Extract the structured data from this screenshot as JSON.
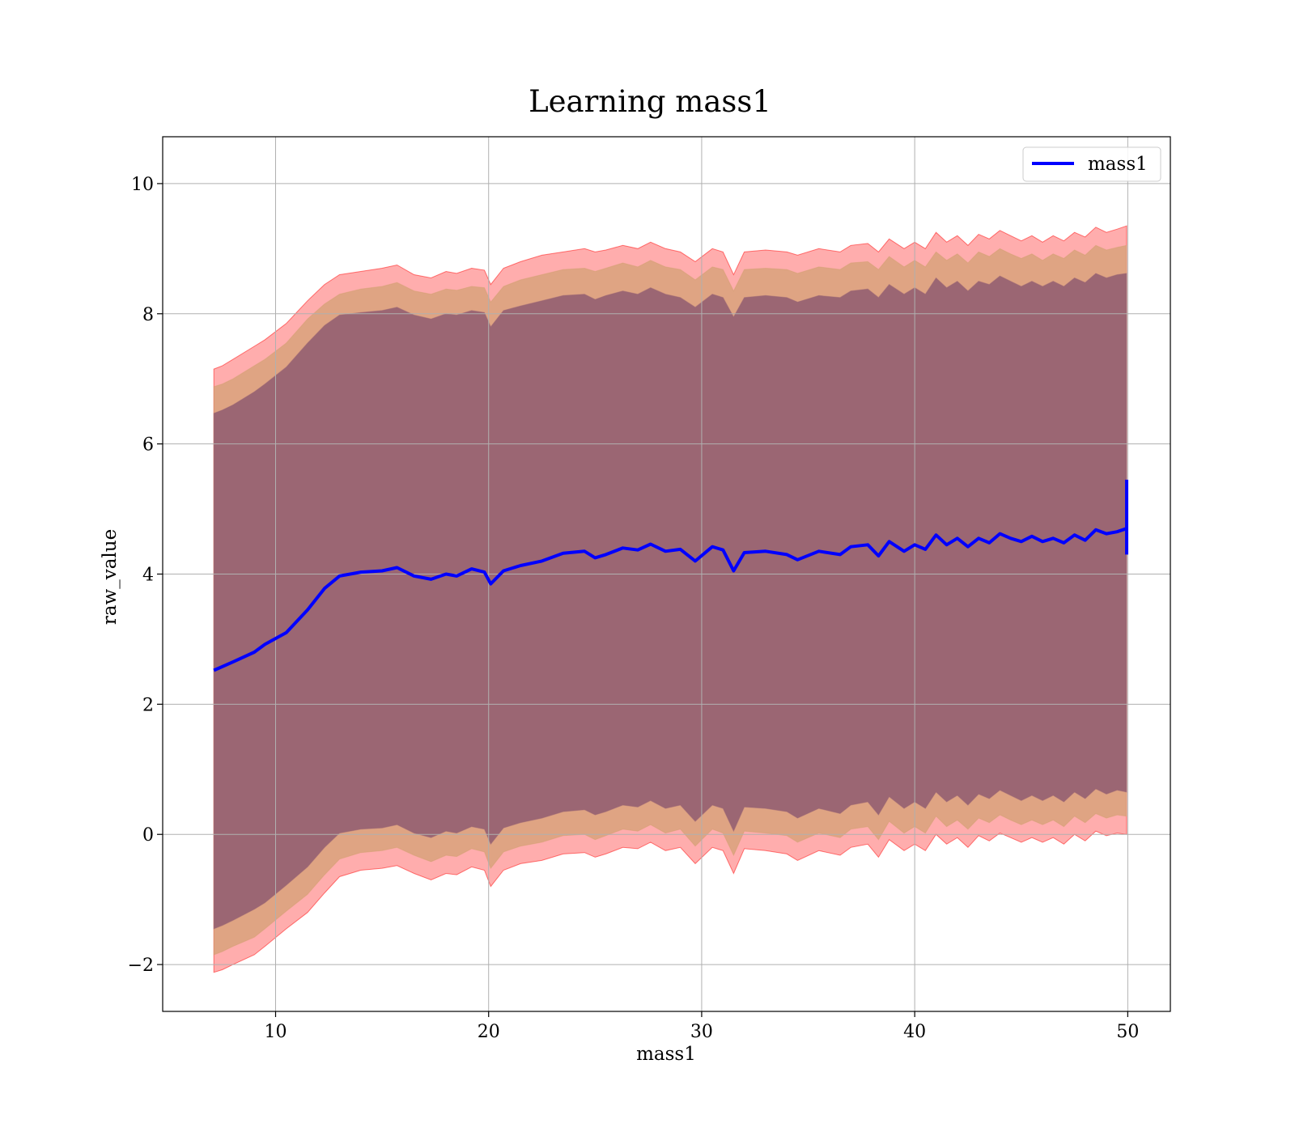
{
  "chart_data": {
    "type": "line",
    "title": "Learning mass1",
    "xlabel": "mass1",
    "ylabel": "raw_value",
    "xlim": [
      4.7,
      52.0
    ],
    "ylim": [
      -2.72,
      10.72
    ],
    "xticks": [
      10,
      20,
      30,
      40,
      50
    ],
    "yticks": [
      -2,
      0,
      2,
      4,
      6,
      8,
      10
    ],
    "xtick_labels": [
      "10",
      "20",
      "30",
      "40",
      "50"
    ],
    "ytick_labels": [
      "−2",
      "0",
      "2",
      "4",
      "6",
      "8",
      "10"
    ],
    "grid": true,
    "legend_position": "top-right",
    "series": [
      {
        "name": "mass1",
        "color": "#0000ff",
        "x": [
          7.1,
          8,
          9,
          9.5,
          10.5,
          11.5,
          12.3,
          13,
          14,
          15,
          15.7,
          16.5,
          17.3,
          18,
          18.5,
          19.2,
          19.8,
          20.1,
          20.7,
          21.5,
          22.5,
          23.5,
          24.5,
          25,
          25.5,
          26.3,
          27,
          27.6,
          28.3,
          29,
          29.7,
          30.5,
          31,
          31.5,
          32,
          33,
          34,
          34.5,
          35.5,
          36.5,
          37,
          37.8,
          38.3,
          38.8,
          39.5,
          40,
          40.5,
          41,
          41.5,
          42,
          42.5,
          43,
          43.5,
          44,
          44.5,
          45,
          45.5,
          46,
          46.5,
          47,
          47.5,
          48,
          48.5,
          49,
          49.5,
          49.95
        ],
        "y": [
          2.52,
          2.65,
          2.8,
          2.92,
          3.1,
          3.45,
          3.78,
          3.97,
          4.03,
          4.05,
          4.1,
          3.97,
          3.92,
          4.0,
          3.97,
          4.08,
          4.03,
          3.85,
          4.05,
          4.13,
          4.2,
          4.32,
          4.35,
          4.25,
          4.3,
          4.4,
          4.37,
          4.46,
          4.35,
          4.38,
          4.2,
          4.42,
          4.37,
          4.05,
          4.33,
          4.35,
          4.3,
          4.22,
          4.35,
          4.3,
          4.42,
          4.45,
          4.28,
          4.5,
          4.35,
          4.45,
          4.38,
          4.6,
          4.45,
          4.55,
          4.42,
          4.55,
          4.48,
          4.62,
          4.55,
          4.5,
          4.58,
          4.5,
          4.55,
          4.48,
          4.6,
          4.52,
          4.68,
          4.62,
          4.65,
          4.7
        ],
        "end_spike": [
          5.45,
          4.3
        ]
      }
    ],
    "bands": [
      {
        "name": "outer",
        "color": "#ff0000",
        "opacity": 0.32,
        "x": [
          7.1,
          7.5,
          8,
          9,
          9.5,
          10.5,
          11.5,
          12.3,
          13,
          14,
          15,
          15.7,
          16.5,
          17.3,
          18,
          18.5,
          19.2,
          19.8,
          20.1,
          20.7,
          21.5,
          22.5,
          23.5,
          24.5,
          25,
          25.5,
          26.3,
          27,
          27.6,
          28.3,
          29,
          29.7,
          30.5,
          31,
          31.5,
          32,
          33,
          34,
          34.5,
          35.5,
          36.5,
          37,
          37.8,
          38.3,
          38.8,
          39.5,
          40,
          40.5,
          41,
          41.5,
          42,
          42.5,
          43,
          43.5,
          44,
          44.5,
          45,
          45.5,
          46,
          46.5,
          47,
          47.5,
          48,
          48.5,
          49,
          49.5,
          49.95
        ],
        "upper": [
          7.15,
          7.2,
          7.3,
          7.5,
          7.6,
          7.85,
          8.2,
          8.45,
          8.6,
          8.65,
          8.7,
          8.75,
          8.6,
          8.55,
          8.65,
          8.62,
          8.7,
          8.67,
          8.45,
          8.7,
          8.8,
          8.9,
          8.95,
          9.0,
          8.95,
          8.98,
          9.05,
          9.0,
          9.1,
          9.0,
          8.95,
          8.8,
          9.0,
          8.95,
          8.6,
          8.95,
          8.98,
          8.95,
          8.9,
          9.0,
          8.95,
          9.05,
          9.08,
          8.95,
          9.15,
          9.0,
          9.1,
          9.0,
          9.25,
          9.1,
          9.2,
          9.05,
          9.22,
          9.15,
          9.28,
          9.2,
          9.12,
          9.2,
          9.1,
          9.2,
          9.12,
          9.25,
          9.18,
          9.33,
          9.25,
          9.3,
          9.35
        ],
        "lower": [
          -2.12,
          -2.08,
          -2.0,
          -1.85,
          -1.72,
          -1.45,
          -1.2,
          -0.9,
          -0.65,
          -0.55,
          -0.52,
          -0.48,
          -0.6,
          -0.7,
          -0.6,
          -0.62,
          -0.5,
          -0.55,
          -0.8,
          -0.55,
          -0.45,
          -0.4,
          -0.3,
          -0.28,
          -0.35,
          -0.3,
          -0.2,
          -0.22,
          -0.12,
          -0.25,
          -0.2,
          -0.45,
          -0.2,
          -0.25,
          -0.6,
          -0.22,
          -0.25,
          -0.3,
          -0.4,
          -0.25,
          -0.32,
          -0.2,
          -0.15,
          -0.35,
          -0.08,
          -0.25,
          -0.15,
          -0.25,
          0.0,
          -0.15,
          -0.05,
          -0.2,
          -0.02,
          -0.1,
          0.02,
          -0.05,
          -0.12,
          -0.05,
          -0.12,
          -0.05,
          -0.15,
          0.0,
          -0.1,
          0.05,
          -0.02,
          0.02,
          0.0
        ]
      },
      {
        "name": "middle",
        "color": "#d2a070",
        "opacity": 0.7,
        "x": [
          7.1,
          7.5,
          8,
          9,
          9.5,
          10.5,
          11.5,
          12.3,
          13,
          14,
          15,
          15.7,
          16.5,
          17.3,
          18,
          18.5,
          19.2,
          19.8,
          20.1,
          20.7,
          21.5,
          22.5,
          23.5,
          24.5,
          25,
          25.5,
          26.3,
          27,
          27.6,
          28.3,
          29,
          29.7,
          30.5,
          31,
          31.5,
          32,
          33,
          34,
          34.5,
          35.5,
          36.5,
          37,
          37.8,
          38.3,
          38.8,
          39.5,
          40,
          40.5,
          41,
          41.5,
          42,
          42.5,
          43,
          43.5,
          44,
          44.5,
          45,
          45.5,
          46,
          46.5,
          47,
          47.5,
          48,
          48.5,
          49,
          49.5,
          49.95
        ],
        "upper": [
          6.88,
          6.92,
          7.0,
          7.2,
          7.3,
          7.55,
          7.92,
          8.15,
          8.3,
          8.38,
          8.42,
          8.48,
          8.35,
          8.3,
          8.38,
          8.36,
          8.42,
          8.4,
          8.18,
          8.42,
          8.52,
          8.6,
          8.68,
          8.7,
          8.65,
          8.7,
          8.78,
          8.72,
          8.82,
          8.72,
          8.68,
          8.52,
          8.72,
          8.68,
          8.35,
          8.68,
          8.7,
          8.68,
          8.62,
          8.72,
          8.68,
          8.78,
          8.8,
          8.68,
          8.88,
          8.72,
          8.82,
          8.72,
          8.95,
          8.82,
          8.92,
          8.78,
          8.95,
          8.88,
          9.0,
          8.92,
          8.85,
          8.92,
          8.82,
          8.92,
          8.85,
          8.98,
          8.9,
          9.05,
          8.98,
          9.02,
          9.05
        ],
        "lower": [
          -1.85,
          -1.8,
          -1.72,
          -1.58,
          -1.45,
          -1.18,
          -0.92,
          -0.62,
          -0.38,
          -0.28,
          -0.25,
          -0.2,
          -0.32,
          -0.42,
          -0.32,
          -0.34,
          -0.22,
          -0.27,
          -0.52,
          -0.27,
          -0.18,
          -0.12,
          -0.02,
          0.0,
          -0.08,
          -0.02,
          0.08,
          0.05,
          0.15,
          0.02,
          0.08,
          -0.18,
          0.08,
          0.02,
          -0.32,
          0.05,
          0.02,
          -0.02,
          -0.12,
          0.02,
          -0.05,
          0.08,
          0.12,
          -0.08,
          0.2,
          0.02,
          0.12,
          0.02,
          0.28,
          0.12,
          0.22,
          0.08,
          0.25,
          0.18,
          0.3,
          0.22,
          0.15,
          0.22,
          0.15,
          0.22,
          0.12,
          0.28,
          0.18,
          0.32,
          0.25,
          0.3,
          0.28
        ]
      },
      {
        "name": "inner",
        "color": "#9b6673",
        "opacity": 1.0,
        "x": [
          7.1,
          7.5,
          8,
          9,
          9.5,
          10.5,
          11.5,
          12.3,
          13,
          14,
          15,
          15.7,
          16.5,
          17.3,
          18,
          18.5,
          19.2,
          19.8,
          20.1,
          20.7,
          21.5,
          22.5,
          23.5,
          24.5,
          25,
          25.5,
          26.3,
          27,
          27.6,
          28.3,
          29,
          29.7,
          30.5,
          31,
          31.5,
          32,
          33,
          34,
          34.5,
          35.5,
          36.5,
          37,
          37.8,
          38.3,
          38.8,
          39.5,
          40,
          40.5,
          41,
          41.5,
          42,
          42.5,
          43,
          43.5,
          44,
          44.5,
          45,
          45.5,
          46,
          46.5,
          47,
          47.5,
          48,
          48.5,
          49,
          49.5,
          49.95
        ],
        "upper": [
          6.47,
          6.52,
          6.6,
          6.8,
          6.92,
          7.18,
          7.55,
          7.82,
          7.98,
          8.02,
          8.05,
          8.1,
          7.98,
          7.92,
          8.0,
          7.98,
          8.05,
          8.02,
          7.8,
          8.05,
          8.12,
          8.2,
          8.28,
          8.3,
          8.22,
          8.28,
          8.35,
          8.3,
          8.4,
          8.3,
          8.25,
          8.1,
          8.3,
          8.25,
          7.95,
          8.25,
          8.28,
          8.25,
          8.18,
          8.28,
          8.25,
          8.35,
          8.38,
          8.25,
          8.45,
          8.3,
          8.4,
          8.3,
          8.55,
          8.4,
          8.5,
          8.35,
          8.5,
          8.45,
          8.58,
          8.5,
          8.42,
          8.5,
          8.42,
          8.5,
          8.42,
          8.55,
          8.48,
          8.62,
          8.55,
          8.6,
          8.62
        ],
        "lower": [
          -1.45,
          -1.4,
          -1.32,
          -1.15,
          -1.05,
          -0.78,
          -0.5,
          -0.2,
          0.02,
          0.08,
          0.1,
          0.15,
          0.02,
          -0.05,
          0.05,
          0.02,
          0.12,
          0.08,
          -0.15,
          0.1,
          0.18,
          0.25,
          0.35,
          0.38,
          0.3,
          0.35,
          0.45,
          0.42,
          0.52,
          0.4,
          0.45,
          0.2,
          0.45,
          0.4,
          0.05,
          0.42,
          0.4,
          0.35,
          0.25,
          0.4,
          0.32,
          0.45,
          0.5,
          0.3,
          0.58,
          0.4,
          0.5,
          0.4,
          0.65,
          0.5,
          0.6,
          0.45,
          0.62,
          0.55,
          0.68,
          0.6,
          0.52,
          0.6,
          0.52,
          0.6,
          0.5,
          0.65,
          0.55,
          0.7,
          0.62,
          0.68,
          0.65
        ]
      }
    ]
  }
}
